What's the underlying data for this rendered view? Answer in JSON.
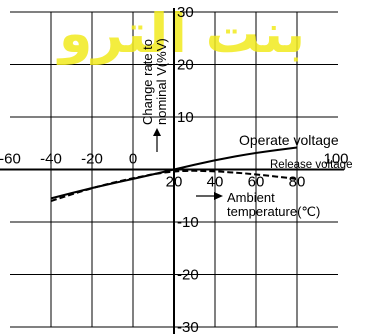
{
  "chart_data": {
    "type": "line",
    "x": [
      -40,
      -20,
      0,
      20,
      40,
      60,
      80
    ],
    "xlim": [
      -60,
      100
    ],
    "ylim": [
      -30,
      30
    ],
    "x_ticks": [
      "-60",
      "-40",
      "-20",
      "0",
      "20",
      "40",
      "60",
      "80",
      "100"
    ],
    "y_ticks": [
      "30",
      "20",
      "10",
      "-10",
      "-20",
      "-30"
    ],
    "ylabel": "Change rate to nominal V(%V)",
    "xlabel": "Ambient temperature(℃)",
    "series": [
      {
        "name": "Operate voltage",
        "style": "solid",
        "x": [
          -40,
          -20,
          0,
          20,
          40,
          60,
          80
        ],
        "values": [
          -5.5,
          -3.5,
          -1.8,
          0,
          1.8,
          3.2,
          4.2
        ]
      },
      {
        "name": "Release voltage",
        "style": "dashed",
        "x": [
          -40,
          -20,
          0,
          20,
          40,
          60,
          80
        ],
        "values": [
          -6.0,
          -3.5,
          -1.6,
          -0.2,
          -0.3,
          -0.9,
          -1.8
        ]
      }
    ],
    "colors": {
      "watermark": "#f2ea1e",
      "lines": "#000000"
    },
    "watermark_text": "بنت الترو"
  }
}
